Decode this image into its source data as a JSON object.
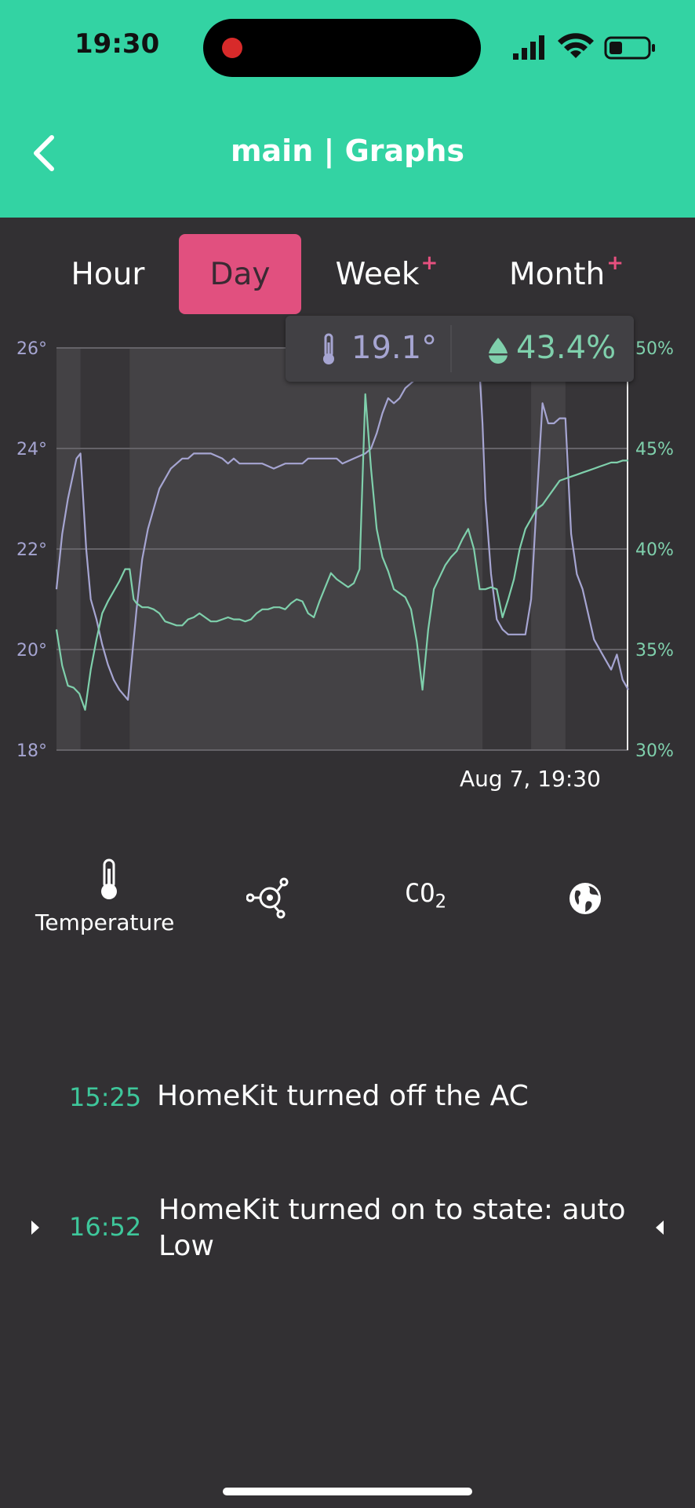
{
  "status_bar": {
    "time": "19:30"
  },
  "header": {
    "title": "main | Graphs"
  },
  "tabs": [
    {
      "label": "Hour",
      "plus": ""
    },
    {
      "label": "Day",
      "plus": ""
    },
    {
      "label": "Week",
      "plus": "+"
    },
    {
      "label": "Month",
      "plus": "+"
    }
  ],
  "active_tab": "Day",
  "tooltip": {
    "temperature": "19.1°",
    "humidity": "43.4%"
  },
  "chart_data": {
    "type": "line",
    "x_label_right": "Aug 7, 19:30",
    "y_left": {
      "ticks": [
        "26°",
        "24°",
        "22°",
        "20°",
        "18°"
      ],
      "range": [
        18,
        26
      ]
    },
    "y_right": {
      "ticks": [
        "50%",
        "45%",
        "40%",
        "35%",
        "30%"
      ],
      "range": [
        30,
        50
      ]
    },
    "grid": true,
    "x_range": [
      0,
      100
    ],
    "shaded_bands": [
      [
        4.2,
        12.8
      ],
      [
        74.5,
        83
      ],
      [
        89,
        100
      ]
    ],
    "series": [
      {
        "axis": "left",
        "color": "#a6a5d2",
        "x": [
          0,
          1,
          2,
          3.5,
          4.2,
          5.2,
          6,
          7,
          8,
          9,
          10,
          11,
          12.5,
          14,
          15,
          16,
          17,
          18,
          19,
          20,
          21,
          22,
          23,
          24,
          25,
          27,
          29,
          30,
          31,
          32,
          34,
          36,
          38,
          40,
          42,
          43,
          44,
          46,
          48,
          49,
          50,
          52,
          54,
          55,
          56,
          57,
          58,
          59,
          60,
          61,
          62,
          63,
          64,
          65,
          66,
          67,
          68,
          69,
          70,
          71,
          72,
          73,
          74,
          74.5,
          75,
          76,
          77,
          78,
          79,
          80,
          81,
          82,
          83,
          84,
          85,
          86,
          87,
          88,
          89,
          90,
          91,
          92,
          93,
          94,
          95,
          96,
          97,
          98,
          99,
          100
        ],
        "y": [
          21.2,
          22.3,
          23.0,
          23.8,
          23.9,
          22.0,
          21.0,
          20.6,
          20.1,
          19.7,
          19.4,
          19.2,
          19.0,
          20.8,
          21.8,
          22.4,
          22.8,
          23.2,
          23.4,
          23.6,
          23.7,
          23.8,
          23.8,
          23.9,
          23.9,
          23.9,
          23.8,
          23.7,
          23.8,
          23.7,
          23.7,
          23.7,
          23.6,
          23.7,
          23.7,
          23.7,
          23.8,
          23.8,
          23.8,
          23.8,
          23.7,
          23.8,
          23.9,
          24.0,
          24.3,
          24.7,
          25.0,
          24.9,
          25.0,
          25.2,
          25.3,
          25.4,
          25.6,
          25.7,
          25.8,
          25.9,
          25.9,
          26.0,
          26.0,
          26.0,
          25.9,
          25.8,
          25.5,
          24.5,
          23.0,
          21.5,
          20.6,
          20.4,
          20.3,
          20.3,
          20.3,
          20.3,
          21.0,
          23.0,
          24.9,
          24.5,
          24.5,
          24.6,
          24.6,
          22.3,
          21.5,
          21.2,
          20.7,
          20.2,
          20.0,
          19.8,
          19.6,
          19.9,
          19.4,
          19.2
        ]
      },
      {
        "axis": "right",
        "color": "#7fd0ac",
        "x": [
          0,
          1,
          2,
          3,
          4,
          5,
          6,
          7,
          8,
          9,
          10,
          11,
          12,
          12.8,
          13.5,
          14,
          15,
          16,
          17,
          18,
          19,
          20,
          21,
          22,
          23,
          24,
          25,
          26,
          27,
          28,
          29,
          30,
          31,
          32,
          33,
          34,
          35,
          36,
          37,
          38,
          39,
          40,
          41,
          42,
          43,
          44,
          45,
          46,
          47,
          48,
          49,
          50,
          51,
          52,
          53,
          54,
          55,
          56,
          57,
          58,
          59,
          60,
          61,
          62,
          63,
          64,
          65,
          66,
          67,
          68,
          69,
          70,
          71,
          72,
          73,
          74,
          75,
          76,
          77,
          78,
          79,
          80,
          81,
          82,
          83,
          84,
          85,
          86,
          87,
          88,
          89,
          90,
          91,
          92,
          93,
          94,
          95,
          96,
          97,
          98,
          99,
          100
        ],
        "y": [
          36.0,
          34.2,
          33.2,
          33.1,
          32.8,
          32.0,
          34.0,
          35.5,
          36.8,
          37.4,
          37.9,
          38.4,
          39.0,
          39.0,
          37.5,
          37.3,
          37.1,
          37.1,
          37.0,
          36.8,
          36.4,
          36.3,
          36.2,
          36.2,
          36.5,
          36.6,
          36.8,
          36.6,
          36.4,
          36.4,
          36.5,
          36.6,
          36.5,
          36.5,
          36.4,
          36.5,
          36.8,
          37.0,
          37.0,
          37.1,
          37.1,
          37.0,
          37.3,
          37.5,
          37.4,
          36.8,
          36.6,
          37.4,
          38.1,
          38.8,
          38.5,
          38.3,
          38.1,
          38.3,
          39.0,
          47.7,
          44.0,
          41.0,
          39.6,
          38.9,
          38.0,
          37.8,
          37.6,
          37.0,
          35.4,
          33.0,
          36.0,
          38.0,
          38.6,
          39.2,
          39.6,
          39.9,
          40.5,
          41.0,
          40.0,
          38.0,
          38.0,
          38.1,
          38.0,
          36.6,
          37.5,
          38.5,
          40.0,
          41.0,
          41.5,
          42.0,
          42.2,
          42.6,
          43.0,
          43.4,
          43.5,
          43.6,
          43.7,
          43.8,
          43.9,
          44.0,
          44.1,
          44.2,
          44.3,
          44.3,
          44.4,
          44.4
        ]
      }
    ]
  },
  "metrics": [
    {
      "name": "temperature",
      "label": "Temperature",
      "icon": "thermometer-icon",
      "selected": true
    },
    {
      "name": "pressure",
      "label": "",
      "icon": "sensor-icon",
      "selected": false
    },
    {
      "name": "co2",
      "label": "",
      "icon": "co2-icon",
      "text": "CO",
      "sub": "2",
      "selected": false
    },
    {
      "name": "outdoor",
      "label": "",
      "icon": "globe-icon",
      "selected": false
    }
  ],
  "events": [
    {
      "time": "15:25",
      "text": "HomeKit turned off the AC",
      "has_arrows": false
    },
    {
      "time": "16:52",
      "text": "HomeKit turned on to state: auto Low",
      "has_arrows": true
    }
  ]
}
